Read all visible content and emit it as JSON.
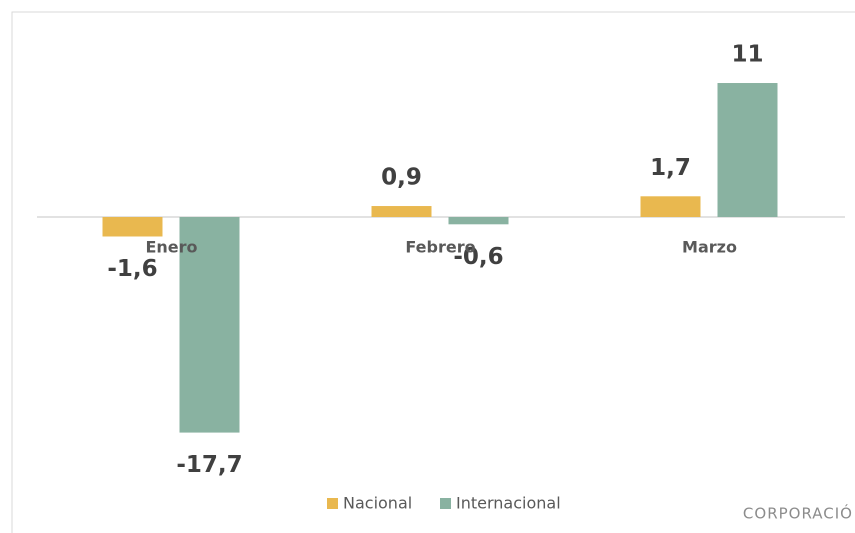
{
  "chart_data": {
    "type": "bar",
    "categories": [
      "Enero",
      "Febrero",
      "Marzo"
    ],
    "series": [
      {
        "name": "Nacional",
        "color": "#e9b84f",
        "values": [
          -1.6,
          0.9,
          1.7
        ],
        "value_labels": [
          "-1,6",
          "0,9",
          "1,7"
        ]
      },
      {
        "name": "Internacional",
        "color": "#89b2a1",
        "values": [
          -17.7,
          -0.6,
          11
        ],
        "value_labels": [
          "-17,7",
          "-0,6",
          "11"
        ]
      }
    ],
    "footer": "CORPORACIÓ"
  }
}
